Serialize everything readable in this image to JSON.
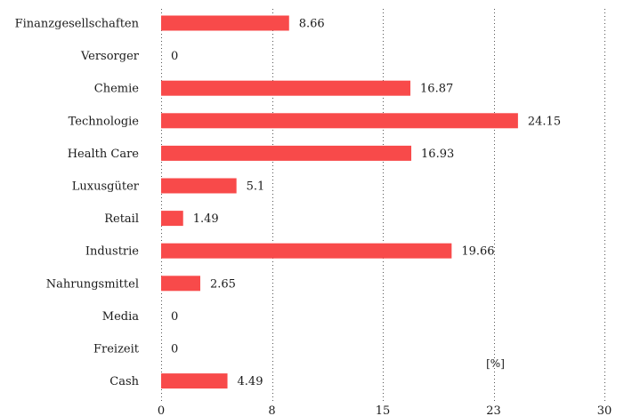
{
  "chart_data": {
    "type": "bar",
    "orientation": "horizontal",
    "categories": [
      "Finanzgesellschaften",
      "Versorger",
      "Chemie",
      "Technologie",
      "Health Care",
      "Luxusgüter",
      "Retail",
      "Industrie",
      "Nahrungsmittel",
      "Media",
      "Freizeit",
      "Cash"
    ],
    "values": [
      8.66,
      0,
      16.87,
      24.15,
      16.93,
      5.1,
      1.49,
      19.66,
      2.65,
      0,
      0,
      4.49
    ],
    "value_labels": [
      "8.66",
      "0",
      "16.87",
      "24.15",
      "16.93",
      "5.1",
      "1.49",
      "19.66",
      "2.65",
      "0",
      "0",
      "4.49"
    ],
    "xlim": [
      0,
      30
    ],
    "xticks": [
      0,
      7.5,
      15,
      22.5,
      30
    ],
    "xtick_labels": [
      "0",
      "8",
      "15",
      "23",
      "30"
    ],
    "unit": "[%]",
    "grid": "vertical dotted",
    "bar_color": "#f84a4a"
  }
}
